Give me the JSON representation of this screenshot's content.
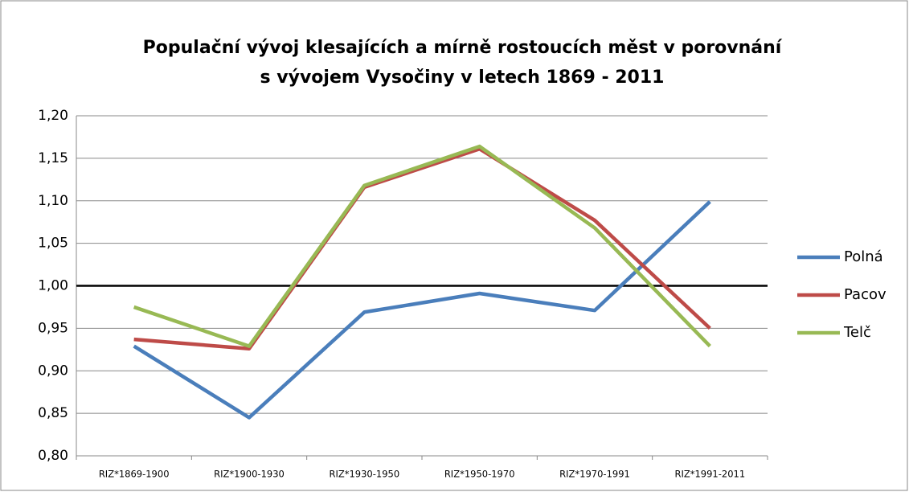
{
  "chart_data": {
    "type": "line",
    "title": [
      "Populační vývoj klesajících a mírně rostoucích měst v porovnání",
      "s vývojem Vysočiny v letech 1869 - 2011"
    ],
    "categories": [
      "RIZ*1869-1900",
      "RIZ*1900-1930",
      "RIZ*1930-1950",
      "RIZ*1950-1970",
      "RIZ*1970-1991",
      "RIZ*1991-2011"
    ],
    "series": [
      {
        "name": "Polná",
        "color": "#4a7ebb",
        "values": [
          0.929,
          0.845,
          0.969,
          0.991,
          0.971,
          1.099
        ]
      },
      {
        "name": "Pacov",
        "color": "#be4b48",
        "values": [
          0.937,
          0.926,
          1.116,
          1.161,
          1.077,
          0.95
        ]
      },
      {
        "name": "Telč",
        "color": "#98b954",
        "values": [
          0.975,
          0.929,
          1.118,
          1.164,
          1.068,
          0.929
        ]
      }
    ],
    "reference_line": {
      "value": 1.0,
      "color": "#000000"
    },
    "ylim": [
      0.8,
      1.2
    ],
    "yticks": [
      {
        "value": 0.8,
        "label": "0,80"
      },
      {
        "value": 0.85,
        "label": "0,85"
      },
      {
        "value": 0.9,
        "label": "0,90"
      },
      {
        "value": 0.95,
        "label": "0,95"
      },
      {
        "value": 1.0,
        "label": "1,00"
      },
      {
        "value": 1.05,
        "label": "1,05"
      },
      {
        "value": 1.1,
        "label": "1,10"
      },
      {
        "value": 1.15,
        "label": "1,15"
      },
      {
        "value": 1.2,
        "label": "1,20"
      }
    ],
    "grid": true,
    "legend": "right"
  }
}
